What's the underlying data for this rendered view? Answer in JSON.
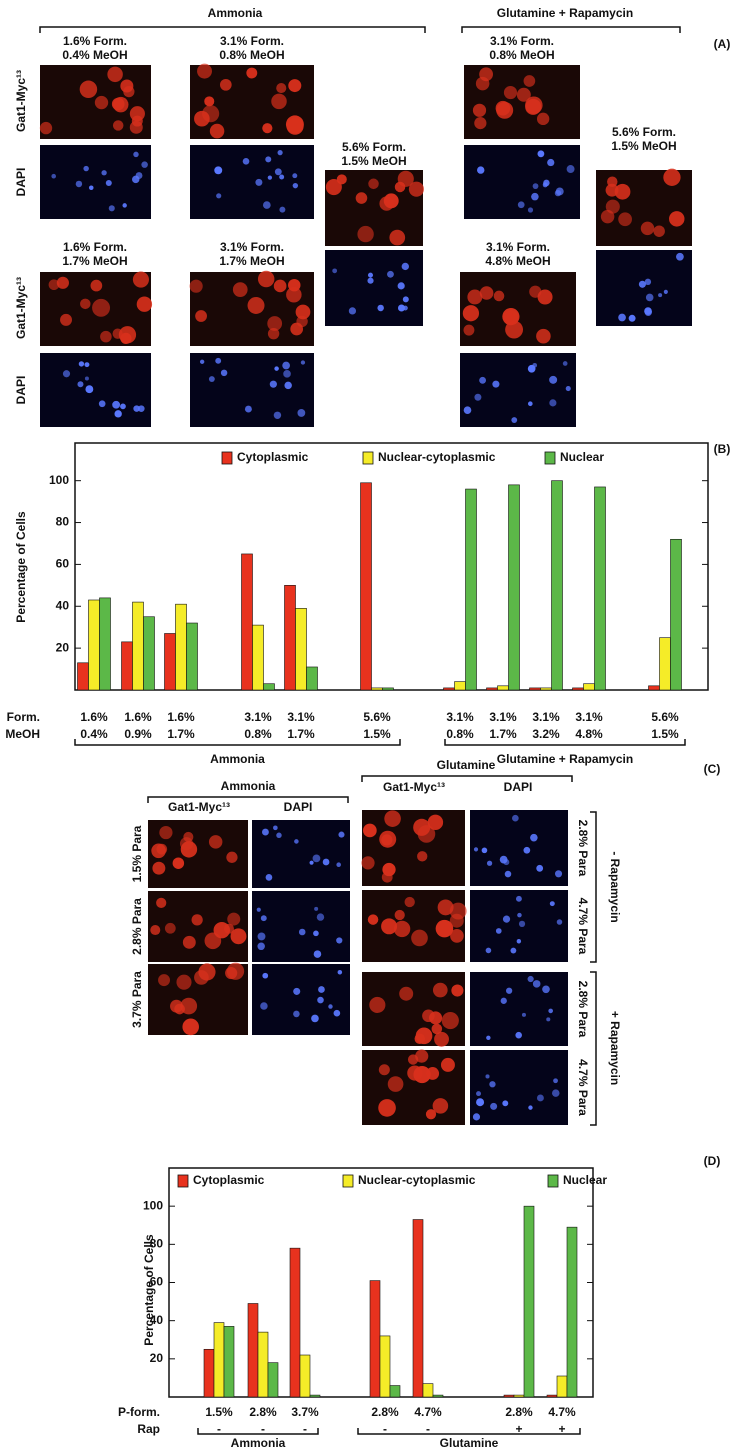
{
  "panel_a": {
    "label": "(A)",
    "groups": [
      "Ammonia",
      "Glutamine + Rapamycin"
    ],
    "rows": [
      "Gat1-Myc¹³",
      "DAPI",
      "Gat1-Myc¹³",
      "DAPI"
    ],
    "conditions": [
      [
        "1.6% Form.",
        "0.4% MeOH"
      ],
      [
        "3.1% Form.",
        "0.8% MeOH"
      ],
      [
        "1.6% Form.",
        "1.7% MeOH"
      ],
      [
        "3.1% Form.",
        "1.7% MeOH"
      ],
      [
        "5.6% Form.",
        "1.5% MeOH"
      ],
      [
        "3.1% Form.",
        "0.8% MeOH"
      ],
      [
        "3.1% Form.",
        "4.8% MeOH"
      ],
      [
        "5.6% Form.",
        "1.5% MeOH"
      ]
    ]
  },
  "panel_c": {
    "label": "(C)",
    "groups": [
      "Ammonia",
      "Glutamine"
    ],
    "columns": [
      "Gat1-Myc¹³",
      "DAPI",
      "Gat1-Myc¹³",
      "DAPI"
    ],
    "ammonia_rows": [
      "1.5% Para",
      "2.8% Para",
      "3.7% Para"
    ],
    "glutamine_rows": [
      "2.8% Para",
      "4.7% Para",
      "2.8% Para",
      "4.7% Para"
    ],
    "rapamycin": [
      "- Rapamycin",
      "+ Rapamycin"
    ]
  },
  "chart_data": [
    {
      "type": "bar",
      "label": "(B)",
      "ylabel": "Percentage of Cells",
      "ylim": [
        0,
        118
      ],
      "yticks": [
        20,
        40,
        60,
        80,
        100
      ],
      "row_labels": [
        "Form.",
        "MeOH"
      ],
      "categories": [
        "1.6%",
        "1.6%",
        "1.6%",
        "3.1%",
        "3.1%",
        "5.6%",
        "3.1%",
        "3.1%",
        "3.1%",
        "3.1%",
        "5.6%"
      ],
      "second_row": [
        "0.4%",
        "0.9%",
        "1.7%",
        "0.8%",
        "1.7%",
        "1.5%",
        "0.8%",
        "1.7%",
        "3.2%",
        "4.8%",
        "1.5%"
      ],
      "groups": [
        "Ammonia",
        "Glutamine + Rapamycin"
      ],
      "series": [
        {
          "name": "Cytoplasmic",
          "color": "#e8321e",
          "values": [
            13,
            23,
            27,
            65,
            50,
            99,
            1,
            1,
            1,
            1,
            2
          ]
        },
        {
          "name": "Nuclear-cytoplasmic",
          "color": "#f5ec28",
          "values": [
            43,
            42,
            41,
            31,
            39,
            1,
            4,
            2,
            1,
            3,
            25
          ]
        },
        {
          "name": "Nuclear",
          "color": "#5cb848",
          "values": [
            44,
            35,
            32,
            3,
            11,
            1,
            96,
            98,
            100,
            97,
            72
          ]
        }
      ]
    },
    {
      "type": "bar",
      "label": "(D)",
      "ylabel": "Percentage of Cells",
      "ylim": [
        0,
        120
      ],
      "yticks": [
        20,
        40,
        60,
        80,
        100
      ],
      "row_labels": [
        "P-form.",
        "Rap"
      ],
      "categories": [
        "1.5%",
        "2.8%",
        "3.7%",
        "2.8%",
        "4.7%",
        "2.8%",
        "4.7%"
      ],
      "second_row": [
        "-",
        "-",
        "-",
        "-",
        "-",
        "+",
        "+"
      ],
      "groups": [
        "Ammonia",
        "Glutamine"
      ],
      "series": [
        {
          "name": "Cytoplasmic",
          "color": "#e8321e",
          "values": [
            25,
            49,
            78,
            61,
            93,
            1,
            1
          ]
        },
        {
          "name": "Nuclear-cytoplasmic",
          "color": "#f5ec28",
          "values": [
            39,
            34,
            22,
            32,
            7,
            1,
            11
          ]
        },
        {
          "name": "Nuclear",
          "color": "#5cb848",
          "values": [
            37,
            18,
            1,
            6,
            1,
            100,
            89
          ]
        }
      ]
    }
  ]
}
